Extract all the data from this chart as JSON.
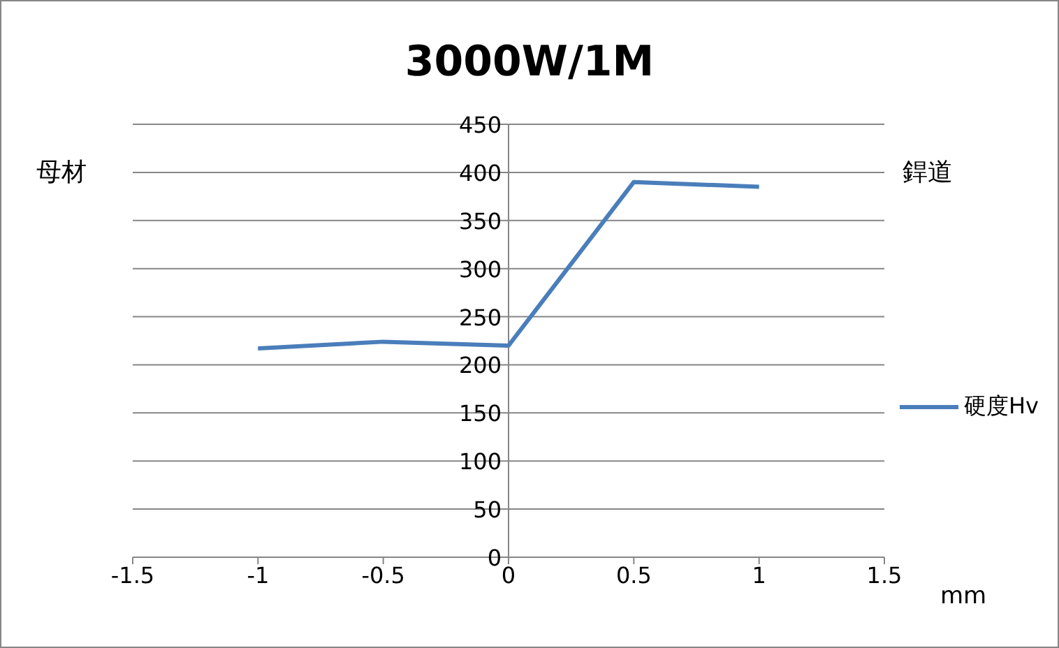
{
  "chart_data": {
    "type": "line",
    "title": "3000W/1M",
    "annotations": [
      "母材",
      "銲道",
      "mm"
    ],
    "x": [
      -1,
      -0.5,
      0,
      0.5,
      1
    ],
    "series": [
      {
        "name": "硬度Hv",
        "color": "#4a7ebb",
        "values": [
          217,
          224,
          220,
          390,
          385
        ]
      }
    ],
    "xlim": [
      -1.5,
      1.5
    ],
    "xticks": [
      -1.5,
      -1,
      -0.5,
      0,
      0.5,
      1,
      1.5
    ],
    "ylim": [
      0,
      450
    ],
    "yticks": [
      0,
      50,
      100,
      150,
      200,
      250,
      300,
      350,
      400,
      450
    ],
    "grid": "y",
    "legend": "right",
    "marker": "none",
    "line_style": "solid"
  }
}
